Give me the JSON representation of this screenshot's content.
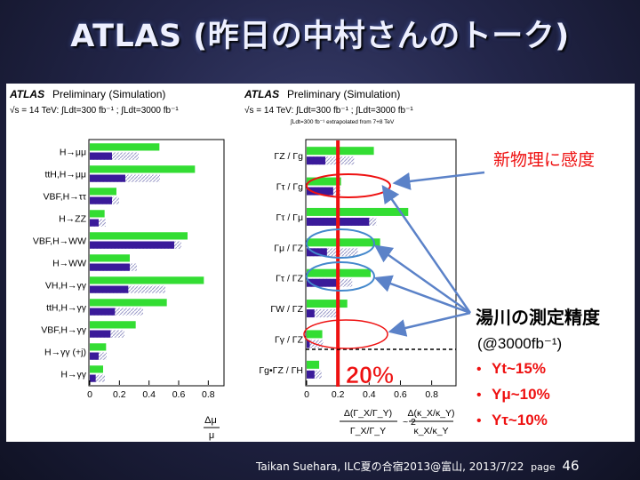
{
  "slide": {
    "title": "ATLAS (昨日の中村さんのトーク)",
    "footer_text": "Taikan Suehara, ILC夏の合宿2013@富山, 2013/7/22",
    "page_word": "page",
    "page_number": "46"
  },
  "colors": {
    "green": "#33dd33",
    "purple": "#3a1a9a",
    "brown": "#7a3a10",
    "hatch": "#b8b8d8",
    "red": "#ee1111",
    "arrow": "#5b82c8",
    "circle_blue": "#4488cc"
  },
  "panels": {
    "left_header": {
      "atlas": "ATLAS",
      "prelim": "Preliminary (Simulation)",
      "lumi": "√s = 14 TeV: ∫Ldt=300 fb⁻¹ ; ∫Ldt=3000 fb⁻¹",
      "extrap": "∫Ldt=300 fb⁻¹ extrapolated from 7+8 TeV"
    },
    "right_header": {
      "atlas": "ATLAS",
      "prelim": "Preliminary (Simulation)",
      "lumi": "√s = 14 TeV: ∫Ldt=300 fb⁻¹ ; ∫Ldt=3000 fb⁻¹"
    },
    "right_ylabel_top": "Δ(Γ_X/Γ_Y)",
    "right_ylabel_bottom": "Γ_X/Γ_Y",
    "right_xlabel_mid": "~ 2",
    "right_xlabel2_top": "Δ(κ_X/κ_Y)",
    "right_xlabel2_bottom": "κ_X/κ_Y",
    "left_xlabel_top": "Δμ",
    "left_xlabel_bottom": "μ"
  },
  "annotations": {
    "new_physics": "新物理に感度",
    "yukawa_title": "湯川の測定精度",
    "yukawa_sub": "(@3000fb⁻¹)",
    "items": [
      "Yt~15%",
      "Yμ~10%",
      "Yτ~10%"
    ],
    "twenty_percent": "20%"
  },
  "chart_data": [
    {
      "type": "bar",
      "orientation": "horizontal",
      "categories": [
        "H→μμ",
        "ttH,H→μμ",
        "VBF,H→ττ",
        "H→ZZ",
        "VBF,H→WW",
        "H→WW",
        "VH,H→γγ",
        "ttH,H→γγ",
        "VBF,H→γγ",
        "H→γγ (+j)",
        "H→γγ"
      ],
      "series": [
        {
          "values": [
            0.47,
            0.71,
            0.18,
            0.1,
            0.66,
            0.27,
            0.77,
            0.52,
            0.31,
            0.11,
            0.09
          ]
        },
        {
          "values": [
            0.15,
            0.24,
            0.15,
            0.06,
            0.57,
            0.27,
            0.26,
            0.17,
            0.14,
            0.06,
            0.04
          ]
        }
      ],
      "xticks": [
        "0",
        "0.2",
        "0.4",
        "0.6",
        "0.8"
      ],
      "xlim": [
        0,
        0.9
      ]
    },
    {
      "type": "bar",
      "orientation": "horizontal",
      "categories": [
        "ΓZ / Γg",
        "Γτ / Γg",
        "Γτ / Γμ",
        "Γμ / ΓZ",
        "Γτ / ΓZ",
        "ΓW / ΓZ",
        "Γγ / ΓZ",
        "Γg•ΓZ / ΓH"
      ],
      "series": [
        {
          "values": [
            0.43,
            0.22,
            0.65,
            0.47,
            0.41,
            0.26,
            0.1,
            0.08
          ]
        },
        {
          "values": [
            0.12,
            0.17,
            0.4,
            0.13,
            0.2,
            0.05,
            0.02,
            0.05
          ]
        }
      ],
      "xticks": [
        "0",
        "0.2",
        "0.4",
        "0.6",
        "0.8"
      ],
      "xlim": [
        0,
        0.95
      ],
      "reference_line": 0.2
    }
  ]
}
